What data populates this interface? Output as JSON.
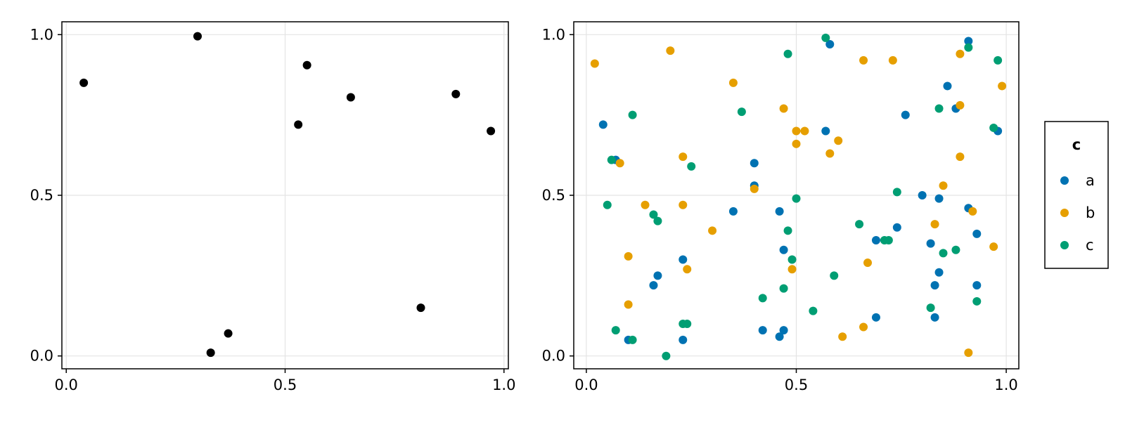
{
  "chart_data": [
    {
      "type": "scatter",
      "xlim": [
        -0.01,
        1.01
      ],
      "ylim": [
        -0.04,
        1.04
      ],
      "x_ticks": [
        0.0,
        0.5,
        1.0
      ],
      "y_ticks": [
        0.0,
        0.5,
        1.0
      ],
      "x_tick_labels": [
        "0.0",
        "0.5",
        "1.0"
      ],
      "y_tick_labels": [
        "0.0",
        "0.5",
        "1.0"
      ],
      "grid": true,
      "series": [
        {
          "color": "#000000",
          "points": [
            [
              0.04,
              0.85
            ],
            [
              0.3,
              0.995
            ],
            [
              0.33,
              0.01
            ],
            [
              0.37,
              0.07
            ],
            [
              0.53,
              0.72
            ],
            [
              0.55,
              0.905
            ],
            [
              0.65,
              0.805
            ],
            [
              0.81,
              0.15
            ],
            [
              0.89,
              0.815
            ],
            [
              0.97,
              0.7
            ]
          ]
        }
      ]
    },
    {
      "type": "scatter",
      "xlim": [
        -0.03,
        1.03
      ],
      "ylim": [
        -0.04,
        1.04
      ],
      "x_ticks": [
        0.0,
        0.5,
        1.0
      ],
      "y_ticks": [
        0.0,
        0.5,
        1.0
      ],
      "x_tick_labels": [
        "0.0",
        "0.5",
        "1.0"
      ],
      "y_tick_labels": [
        "0.0",
        "0.5",
        "1.0"
      ],
      "grid": true,
      "legend": {
        "title": "c",
        "placement": "right"
      },
      "series": [
        {
          "name": "a",
          "color": "#0072B2",
          "points": [
            [
              0.04,
              0.72
            ],
            [
              0.07,
              0.61
            ],
            [
              0.1,
              0.05
            ],
            [
              0.16,
              0.22
            ],
            [
              0.17,
              0.25
            ],
            [
              0.23,
              0.05
            ],
            [
              0.23,
              0.3
            ],
            [
              0.35,
              0.45
            ],
            [
              0.4,
              0.6
            ],
            [
              0.4,
              0.53
            ],
            [
              0.42,
              0.08
            ],
            [
              0.46,
              0.45
            ],
            [
              0.46,
              0.06
            ],
            [
              0.47,
              0.33
            ],
            [
              0.47,
              0.08
            ],
            [
              0.57,
              0.7
            ],
            [
              0.58,
              0.97
            ],
            [
              0.69,
              0.36
            ],
            [
              0.69,
              0.12
            ],
            [
              0.74,
              0.4
            ],
            [
              0.76,
              0.75
            ],
            [
              0.8,
              0.5
            ],
            [
              0.82,
              0.35
            ],
            [
              0.83,
              0.22
            ],
            [
              0.83,
              0.12
            ],
            [
              0.84,
              0.49
            ],
            [
              0.84,
              0.26
            ],
            [
              0.86,
              0.84
            ],
            [
              0.88,
              0.77
            ],
            [
              0.91,
              0.98
            ],
            [
              0.91,
              0.46
            ],
            [
              0.93,
              0.38
            ],
            [
              0.93,
              0.22
            ],
            [
              0.98,
              0.7
            ]
          ]
        },
        {
          "name": "b",
          "color": "#E69F00",
          "points": [
            [
              0.02,
              0.91
            ],
            [
              0.08,
              0.6
            ],
            [
              0.1,
              0.31
            ],
            [
              0.1,
              0.16
            ],
            [
              0.14,
              0.47
            ],
            [
              0.2,
              0.95
            ],
            [
              0.23,
              0.62
            ],
            [
              0.23,
              0.47
            ],
            [
              0.24,
              0.27
            ],
            [
              0.3,
              0.39
            ],
            [
              0.35,
              0.85
            ],
            [
              0.4,
              0.52
            ],
            [
              0.47,
              0.77
            ],
            [
              0.49,
              0.27
            ],
            [
              0.5,
              0.7
            ],
            [
              0.5,
              0.66
            ],
            [
              0.52,
              0.7
            ],
            [
              0.58,
              0.63
            ],
            [
              0.6,
              0.67
            ],
            [
              0.61,
              0.06
            ],
            [
              0.66,
              0.92
            ],
            [
              0.66,
              0.09
            ],
            [
              0.67,
              0.29
            ],
            [
              0.73,
              0.92
            ],
            [
              0.83,
              0.41
            ],
            [
              0.85,
              0.53
            ],
            [
              0.89,
              0.94
            ],
            [
              0.89,
              0.78
            ],
            [
              0.89,
              0.62
            ],
            [
              0.91,
              0.01
            ],
            [
              0.92,
              0.45
            ],
            [
              0.97,
              0.34
            ],
            [
              0.99,
              0.84
            ]
          ]
        },
        {
          "name": "c",
          "color": "#009E73",
          "points": [
            [
              0.05,
              0.47
            ],
            [
              0.06,
              0.61
            ],
            [
              0.07,
              0.08
            ],
            [
              0.11,
              0.75
            ],
            [
              0.11,
              0.05
            ],
            [
              0.16,
              0.44
            ],
            [
              0.17,
              0.42
            ],
            [
              0.19,
              0.0
            ],
            [
              0.23,
              0.1
            ],
            [
              0.24,
              0.1
            ],
            [
              0.25,
              0.59
            ],
            [
              0.37,
              0.76
            ],
            [
              0.42,
              0.18
            ],
            [
              0.47,
              0.21
            ],
            [
              0.48,
              0.94
            ],
            [
              0.48,
              0.39
            ],
            [
              0.49,
              0.3
            ],
            [
              0.5,
              0.49
            ],
            [
              0.54,
              0.14
            ],
            [
              0.57,
              0.99
            ],
            [
              0.59,
              0.25
            ],
            [
              0.65,
              0.41
            ],
            [
              0.71,
              0.36
            ],
            [
              0.72,
              0.36
            ],
            [
              0.74,
              0.51
            ],
            [
              0.82,
              0.15
            ],
            [
              0.84,
              0.77
            ],
            [
              0.85,
              0.32
            ],
            [
              0.88,
              0.33
            ],
            [
              0.91,
              0.96
            ],
            [
              0.93,
              0.17
            ],
            [
              0.97,
              0.71
            ],
            [
              0.98,
              0.92
            ]
          ]
        }
      ]
    }
  ]
}
